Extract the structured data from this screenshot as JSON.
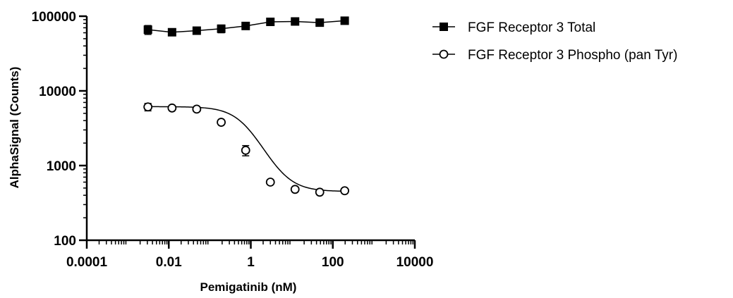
{
  "chart_data": {
    "type": "scatter",
    "title": "",
    "xlabel": "Pemigatinib (nM)",
    "ylabel": "AlphaSignal (Counts)",
    "x_scale": "log",
    "y_scale": "log",
    "xlim": [
      0.0001,
      10000
    ],
    "ylim": [
      100,
      100000
    ],
    "x_ticks": [
      {
        "value": 0.0001,
        "label": "0.0001"
      },
      {
        "value": 0.01,
        "label": "0.01"
      },
      {
        "value": 1,
        "label": "1"
      },
      {
        "value": 100,
        "label": "100"
      },
      {
        "value": 10000,
        "label": "10000"
      }
    ],
    "y_ticks": [
      {
        "value": 100,
        "label": "100"
      },
      {
        "value": 1000,
        "label": "1000"
      },
      {
        "value": 10000,
        "label": "10000"
      },
      {
        "value": 100000,
        "label": "100000"
      }
    ],
    "grid": false,
    "legend_position": "top-right",
    "series": [
      {
        "name": "FGF Receptor 3 Total",
        "marker": "filled-square",
        "color": "#000000",
        "x": [
          0.0031,
          0.012,
          0.048,
          0.19,
          0.75,
          3.0,
          12.0,
          48.0,
          195.0
        ],
        "y": [
          66000,
          61000,
          64000,
          68000,
          74000,
          84000,
          85000,
          82000,
          87000
        ],
        "err": [
          9000,
          4000,
          5000,
          8000,
          3000,
          4000,
          3000,
          3000,
          4000
        ]
      },
      {
        "name": "FGF Receptor 3 Phospho (pan Tyr)",
        "marker": "open-circle",
        "color": "#000000",
        "x": [
          0.0031,
          0.012,
          0.048,
          0.19,
          0.75,
          3.0,
          12.0,
          48.0,
          195.0
        ],
        "y": [
          6100,
          5900,
          5700,
          3800,
          1600,
          600,
          480,
          440,
          460
        ],
        "err": [
          700,
          200,
          200,
          150,
          250,
          30,
          20,
          20,
          20
        ],
        "fit": {
          "top": 6150,
          "bottom": 450,
          "ic50": 0.78,
          "hill": 1.35
        }
      }
    ]
  }
}
